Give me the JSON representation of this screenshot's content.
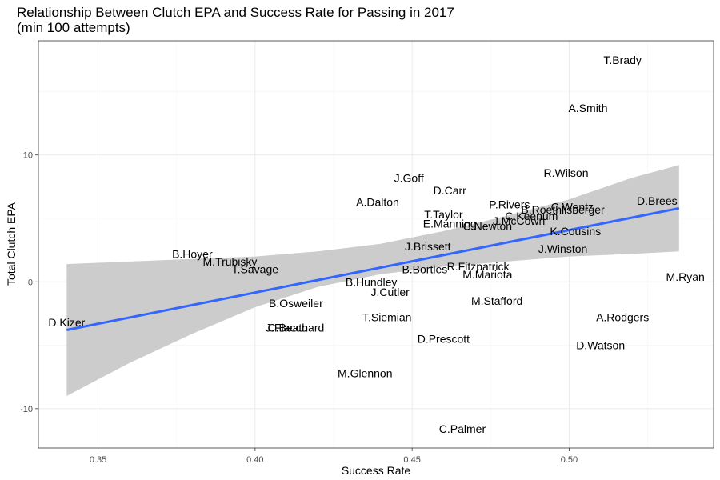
{
  "chart_data": {
    "type": "scatter",
    "title": "Relationship Between Clutch EPA and Success Rate for Passing in 2017",
    "subtitle": "(min 100 attempts)",
    "xlabel": "Success Rate",
    "ylabel": "Total Clutch EPA",
    "xlim": [
      0.331,
      0.546
    ],
    "ylim": [
      -13.1,
      19.0
    ],
    "x_ticks": [
      0.35,
      0.4,
      0.45,
      0.5
    ],
    "x_tick_labels": [
      "0.35",
      "0.40",
      "0.45",
      "0.50"
    ],
    "y_ticks": [
      -10,
      0,
      10
    ],
    "y_tick_labels": [
      "-10",
      "0",
      "10"
    ],
    "grid": true,
    "legend": "none",
    "colors": {
      "fit_line": "#3366ff",
      "confidence_band": "#cccccc",
      "grid": "#ebebeb",
      "panel_border": "#333333"
    },
    "points": [
      {
        "label": "T.Brady",
        "x": 0.517,
        "y": 17.5
      },
      {
        "label": "A.Smith",
        "x": 0.506,
        "y": 13.7
      },
      {
        "label": "R.Wilson",
        "x": 0.499,
        "y": 8.6
      },
      {
        "label": "J.Goff",
        "x": 0.449,
        "y": 8.2
      },
      {
        "label": "D.Carr",
        "x": 0.462,
        "y": 7.2
      },
      {
        "label": "D.Brees",
        "x": 0.528,
        "y": 6.4
      },
      {
        "label": "A.Dalton",
        "x": 0.439,
        "y": 6.3
      },
      {
        "label": "P.Rivers",
        "x": 0.481,
        "y": 6.1
      },
      {
        "label": "C.Wentz",
        "x": 0.501,
        "y": 5.9
      },
      {
        "label": "B.Roethlisberger",
        "x": 0.498,
        "y": 5.7
      },
      {
        "label": "T.Taylor",
        "x": 0.46,
        "y": 5.3
      },
      {
        "label": "C.Keenum",
        "x": 0.488,
        "y": 5.2
      },
      {
        "label": "J.McCown",
        "x": 0.484,
        "y": 4.8
      },
      {
        "label": "E.Manning",
        "x": 0.462,
        "y": 4.6
      },
      {
        "label": "C.Newton",
        "x": 0.474,
        "y": 4.4
      },
      {
        "label": "K.Cousins",
        "x": 0.502,
        "y": 4.0
      },
      {
        "label": "J.Brissett",
        "x": 0.455,
        "y": 2.8
      },
      {
        "label": "J.Winston",
        "x": 0.498,
        "y": 2.6
      },
      {
        "label": "B.Hoyer",
        "x": 0.38,
        "y": 2.2
      },
      {
        "label": "M.Trubisky",
        "x": 0.392,
        "y": 1.6
      },
      {
        "label": "R.Fitzpatrick",
        "x": 0.471,
        "y": 1.2
      },
      {
        "label": "T.Savage",
        "x": 0.4,
        "y": 1.0
      },
      {
        "label": "B.Bortles",
        "x": 0.454,
        "y": 1.0
      },
      {
        "label": "M.Mariota",
        "x": 0.474,
        "y": 0.6
      },
      {
        "label": "M.Ryan",
        "x": 0.537,
        "y": 0.4
      },
      {
        "label": "B.Hundley",
        "x": 0.437,
        "y": 0.0
      },
      {
        "label": "J.Cutler",
        "x": 0.443,
        "y": -0.8
      },
      {
        "label": "M.Stafford",
        "x": 0.477,
        "y": -1.5
      },
      {
        "label": "B.Osweiler",
        "x": 0.413,
        "y": -1.7
      },
      {
        "label": "T.Siemian",
        "x": 0.442,
        "y": -2.8
      },
      {
        "label": "A.Rodgers",
        "x": 0.517,
        "y": -2.8
      },
      {
        "label": "D.Kizer",
        "x": 0.34,
        "y": -3.2
      },
      {
        "label": "J.Flacco",
        "x": 0.41,
        "y": -3.6
      },
      {
        "label": "C.Beathard",
        "x": 0.413,
        "y": -3.6
      },
      {
        "label": "D.Prescott",
        "x": 0.46,
        "y": -4.5
      },
      {
        "label": "D.Watson",
        "x": 0.51,
        "y": -5.0
      },
      {
        "label": "M.Glennon",
        "x": 0.435,
        "y": -7.2
      },
      {
        "label": "C.Palmer",
        "x": 0.466,
        "y": -11.6
      }
    ],
    "fit": {
      "type": "linear",
      "x": [
        0.34,
        0.535
      ],
      "y": [
        -3.8,
        5.8
      ]
    },
    "confidence_band": {
      "x": [
        0.34,
        0.36,
        0.38,
        0.4,
        0.42,
        0.44,
        0.46,
        0.48,
        0.5,
        0.52,
        0.535
      ],
      "lower": [
        -9.0,
        -6.4,
        -4.1,
        -2.0,
        -0.4,
        0.6,
        1.2,
        1.6,
        2.0,
        2.2,
        2.4
      ],
      "upper": [
        1.4,
        1.6,
        1.8,
        2.0,
        2.4,
        3.0,
        4.0,
        5.2,
        6.5,
        8.2,
        9.2
      ]
    }
  }
}
